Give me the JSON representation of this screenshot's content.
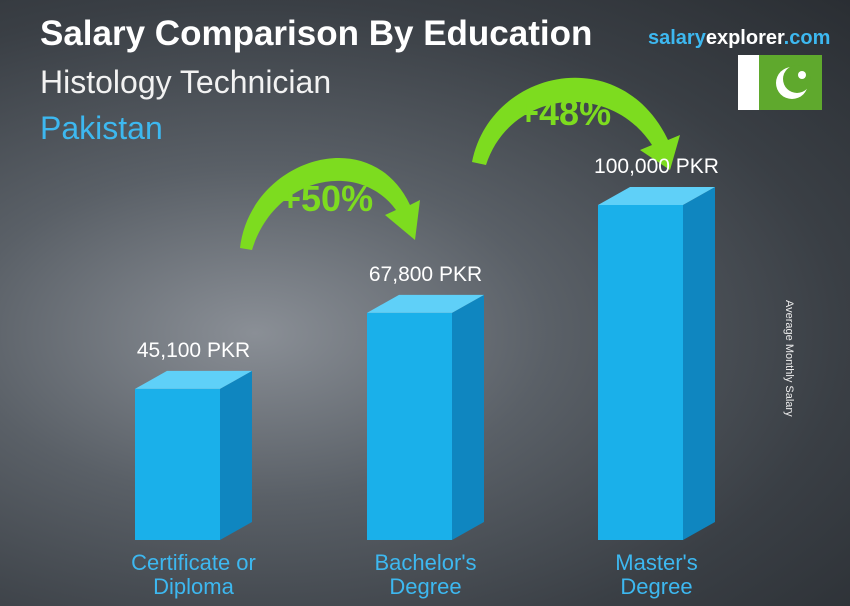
{
  "chart_data": {
    "type": "bar3d",
    "title": "Salary Comparison By Education",
    "subtitle": "Histology Technician",
    "country": "Pakistan",
    "brand": [
      "salary",
      "explorer",
      ".com"
    ],
    "y_label": "Average Monthly Salary",
    "categories": [
      "Certificate or Diploma",
      "Bachelor's Degree",
      "Master's Degree"
    ],
    "values": [
      45100,
      67800,
      100000
    ],
    "value_labels": [
      "45,100 PKR",
      "67,800 PKR",
      "100,000 PKR"
    ],
    "color": "#1ab0ea",
    "annotations": [
      "+50%",
      "+48%"
    ]
  }
}
